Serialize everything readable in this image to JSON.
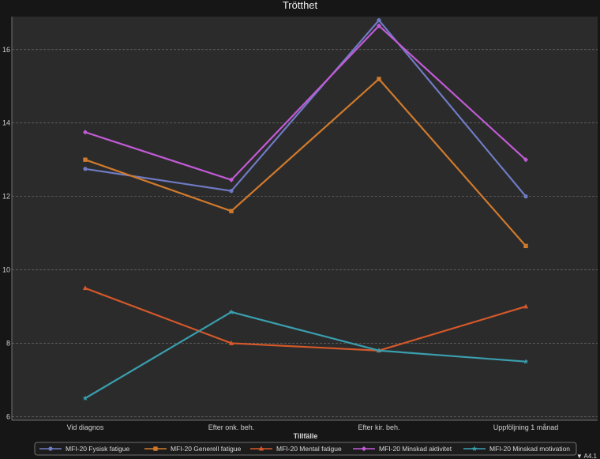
{
  "chart_data": {
    "type": "line",
    "title": "Trötthet",
    "xlabel": "Tillfälle",
    "ylabel": "",
    "categories": [
      "Vid diagnos",
      "Efter onk. beh.",
      "Efter kir. beh.",
      "Uppföljning 1 månad"
    ],
    "ylim": [
      5.9,
      16.9
    ],
    "yticks": [
      6,
      8,
      10,
      12,
      14,
      16
    ],
    "grid": true,
    "legend_position": "bottom",
    "series": [
      {
        "name": "MFI-20 Fysisk fatigue",
        "color": "#6f7bc4",
        "marker": "circle",
        "values": [
          12.75,
          12.15,
          16.8,
          12.0
        ]
      },
      {
        "name": "MFI-20 Generell fatigue",
        "color": "#d07a2c",
        "marker": "square",
        "values": [
          13.0,
          11.6,
          15.2,
          10.65
        ]
      },
      {
        "name": "MFI-20 Mental fatigue",
        "color": "#d4582a",
        "marker": "triangle",
        "values": [
          9.5,
          8.0,
          7.8,
          9.0
        ]
      },
      {
        "name": "MFI-20 Minskad aktivitet",
        "color": "#c25ad6",
        "marker": "diamond",
        "values": [
          13.75,
          12.45,
          16.65,
          13.0
        ]
      },
      {
        "name": "MFI-20 Minskad motivation",
        "color": "#3a9eae",
        "marker": "star",
        "values": [
          6.5,
          8.85,
          7.8,
          7.5
        ]
      }
    ]
  },
  "footer": {
    "label": "▼ A4.1"
  }
}
